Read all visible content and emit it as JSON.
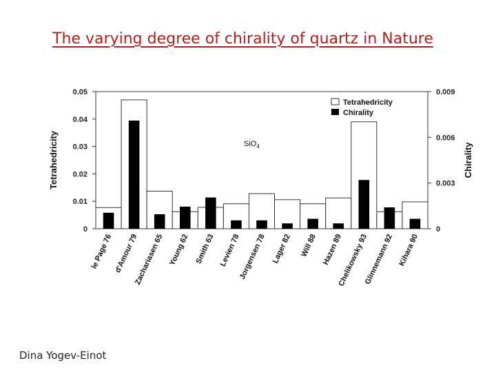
{
  "slide": {
    "title": "The varying degree of chirality of quartz in Nature",
    "footer": "Dina Yogev-Einot"
  },
  "colors": {
    "title": "#b0201c",
    "tetra_fill": "#ffffff",
    "chirality_fill": "#000000"
  },
  "chart_data": {
    "type": "bar",
    "title": "",
    "annotation": {
      "text": "SiO",
      "subscript": "4"
    },
    "ylabel": "Tetrahedricity",
    "ylabel_right": "Chirality",
    "ylim": [
      0,
      0.05
    ],
    "ylim_right": [
      0,
      0.009
    ],
    "yticks_left": [
      "0",
      "0.01",
      "0.02",
      "0.03",
      "0.04",
      "0.05"
    ],
    "yticks_right": [
      "0",
      "0.003",
      "0.006",
      "0.009"
    ],
    "legend_position": "top-right",
    "categories": [
      "le Page 76",
      "d'Amour 79",
      "Zachariasen 65",
      "Young 62",
      "Smith 63",
      "Levien 78",
      "Jorgensen 78",
      "Lager 82",
      "Will 88",
      "Hazen 89",
      "Chelikowsky 93",
      "Glinnemann 92",
      "Kihara 90"
    ],
    "series": [
      {
        "name": "Tetrahedricity",
        "axis": "left",
        "values": [
          0.0077,
          0.047,
          0.0137,
          0.0062,
          0.0078,
          0.0091,
          0.0128,
          0.0106,
          0.0091,
          0.0112,
          0.039,
          0.0062,
          0.0098
        ]
      },
      {
        "name": "Chirality",
        "axis": "right",
        "values": [
          0.00105,
          0.0071,
          0.00095,
          0.00145,
          0.00205,
          0.00055,
          0.00055,
          0.00035,
          0.00065,
          0.00035,
          0.0032,
          0.0014,
          0.00065
        ]
      }
    ]
  }
}
